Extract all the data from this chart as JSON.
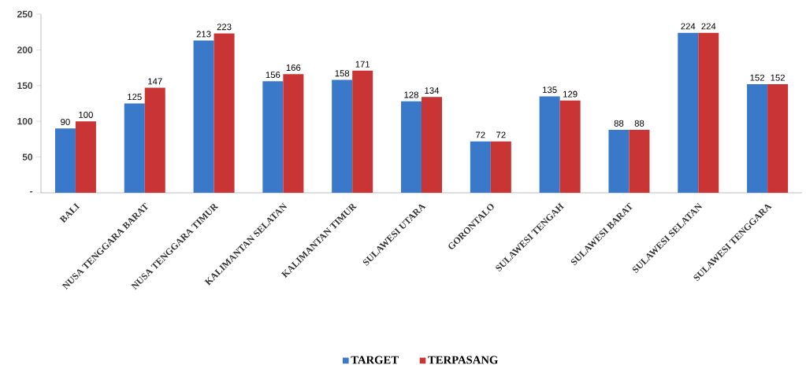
{
  "chart_data": {
    "type": "bar",
    "categories": [
      "BALI",
      "NUSA TENGGARA BARAT",
      "NUSA TENGGARA TIMUR",
      "KALIMANTAN SELATAN",
      "KALIMANTAN TIMUR",
      "SULAWESI UTARA",
      "GORONTALO",
      "SULAWESI TENGAH",
      "SULAWESI BARAT",
      "SULAWESI SELATAN",
      "SULAWESI TENGGARA"
    ],
    "series": [
      {
        "name": "TARGET",
        "color": "#3a78c9",
        "values": [
          90,
          125,
          213,
          156,
          158,
          128,
          72,
          135,
          88,
          224,
          152
        ]
      },
      {
        "name": "TERPASANG",
        "color": "#c93434",
        "values": [
          100,
          147,
          223,
          166,
          171,
          134,
          72,
          129,
          88,
          224,
          152
        ]
      }
    ],
    "ylim": [
      0,
      250
    ],
    "yticks": [
      {
        "value": 0,
        "label": "-"
      },
      50,
      100,
      150,
      200,
      250
    ],
    "data_labels": true,
    "legend": "bottom"
  }
}
